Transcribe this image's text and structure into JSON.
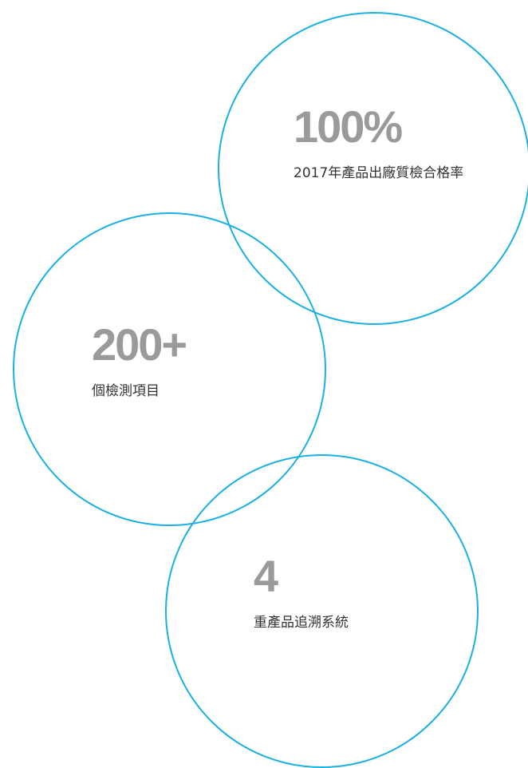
{
  "stats": [
    {
      "value": "100%",
      "caption": "2017年產品出廠質檢合格率"
    },
    {
      "value": "200+",
      "caption": "個檢測項目"
    },
    {
      "value": "4",
      "caption": "重產品追溯系統"
    }
  ],
  "colors": {
    "ring": "#1ab0e6",
    "number": "#9a9a9a",
    "caption": "#333333"
  }
}
